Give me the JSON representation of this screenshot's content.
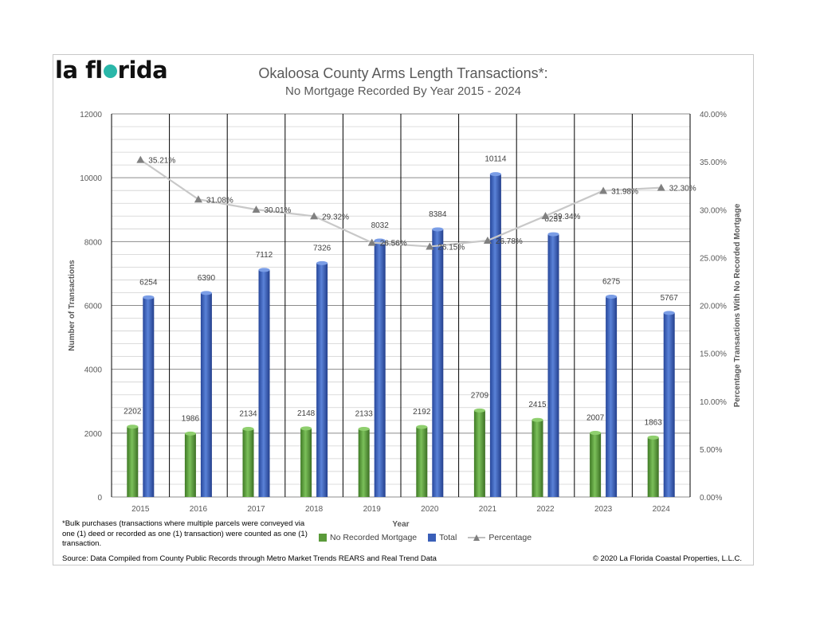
{
  "logo": {
    "pre": "la fl",
    "post": "rida"
  },
  "chart_data": {
    "type": "bar",
    "title": "Okaloosa County Arms Length Transactions*:",
    "subtitle": "No Mortgage Recorded By Year 2015 - 2024",
    "xlabel": "Year",
    "ylabel": "Number of Transactions",
    "y2label": "Percentage Transactions With No Recorded Mortgage",
    "categories": [
      "2015",
      "2016",
      "2017",
      "2018",
      "2019",
      "2020",
      "2021",
      "2022",
      "2023",
      "2024"
    ],
    "ylim": [
      0,
      12000
    ],
    "y_ticks": [
      "0",
      "2000",
      "4000",
      "6000",
      "8000",
      "10000",
      "12000"
    ],
    "y2lim": [
      0,
      40
    ],
    "y2_ticks": [
      "0.00%",
      "5.00%",
      "10.00%",
      "15.00%",
      "20.00%",
      "25.00%",
      "30.00%",
      "35.00%",
      "40.00%"
    ],
    "grid": true,
    "legend_position": "bottom",
    "series": [
      {
        "name": "No Recorded Mortgage",
        "kind": "bar",
        "color": "#5a9a3a",
        "values": [
          2202,
          1986,
          2134,
          2148,
          2133,
          2192,
          2709,
          2415,
          2007,
          1863
        ],
        "labels": [
          "2202",
          "1986",
          "2134",
          "2148",
          "2133",
          "2192",
          "2709",
          "2415",
          "2007",
          "1863"
        ]
      },
      {
        "name": "Total",
        "kind": "bar",
        "color": "#3a5fb8",
        "values": [
          6254,
          6390,
          7112,
          7326,
          8032,
          8384,
          10114,
          8231,
          6275,
          5767
        ],
        "labels": [
          "6254",
          "6390",
          "7112",
          "7326",
          "8032",
          "8384",
          "10114",
          "8231",
          "6275",
          "5767"
        ]
      },
      {
        "name": "Percentage",
        "kind": "line",
        "axis": "right",
        "color": "#a6a6a6",
        "values": [
          35.21,
          31.08,
          30.01,
          29.32,
          26.56,
          26.15,
          26.78,
          29.34,
          31.98,
          32.3
        ],
        "labels": [
          "35.21%",
          "31.08%",
          "30.01%",
          "29.32%",
          "26.56%",
          "26.15%",
          "26.78%",
          "29.34%",
          "31.98%",
          "32.30%"
        ]
      }
    ]
  },
  "footnote": "*Bulk purchases (transactions where multiple parcels were conveyed via one (1) deed or recorded as one (1) transaction) were counted as one (1) transaction.",
  "source": "Source:  Data Compiled from County Public Records through Metro Market Trends REARS and Real Trend Data",
  "copyright": "© 2020 La Florida Coastal Properties, L.L.C."
}
